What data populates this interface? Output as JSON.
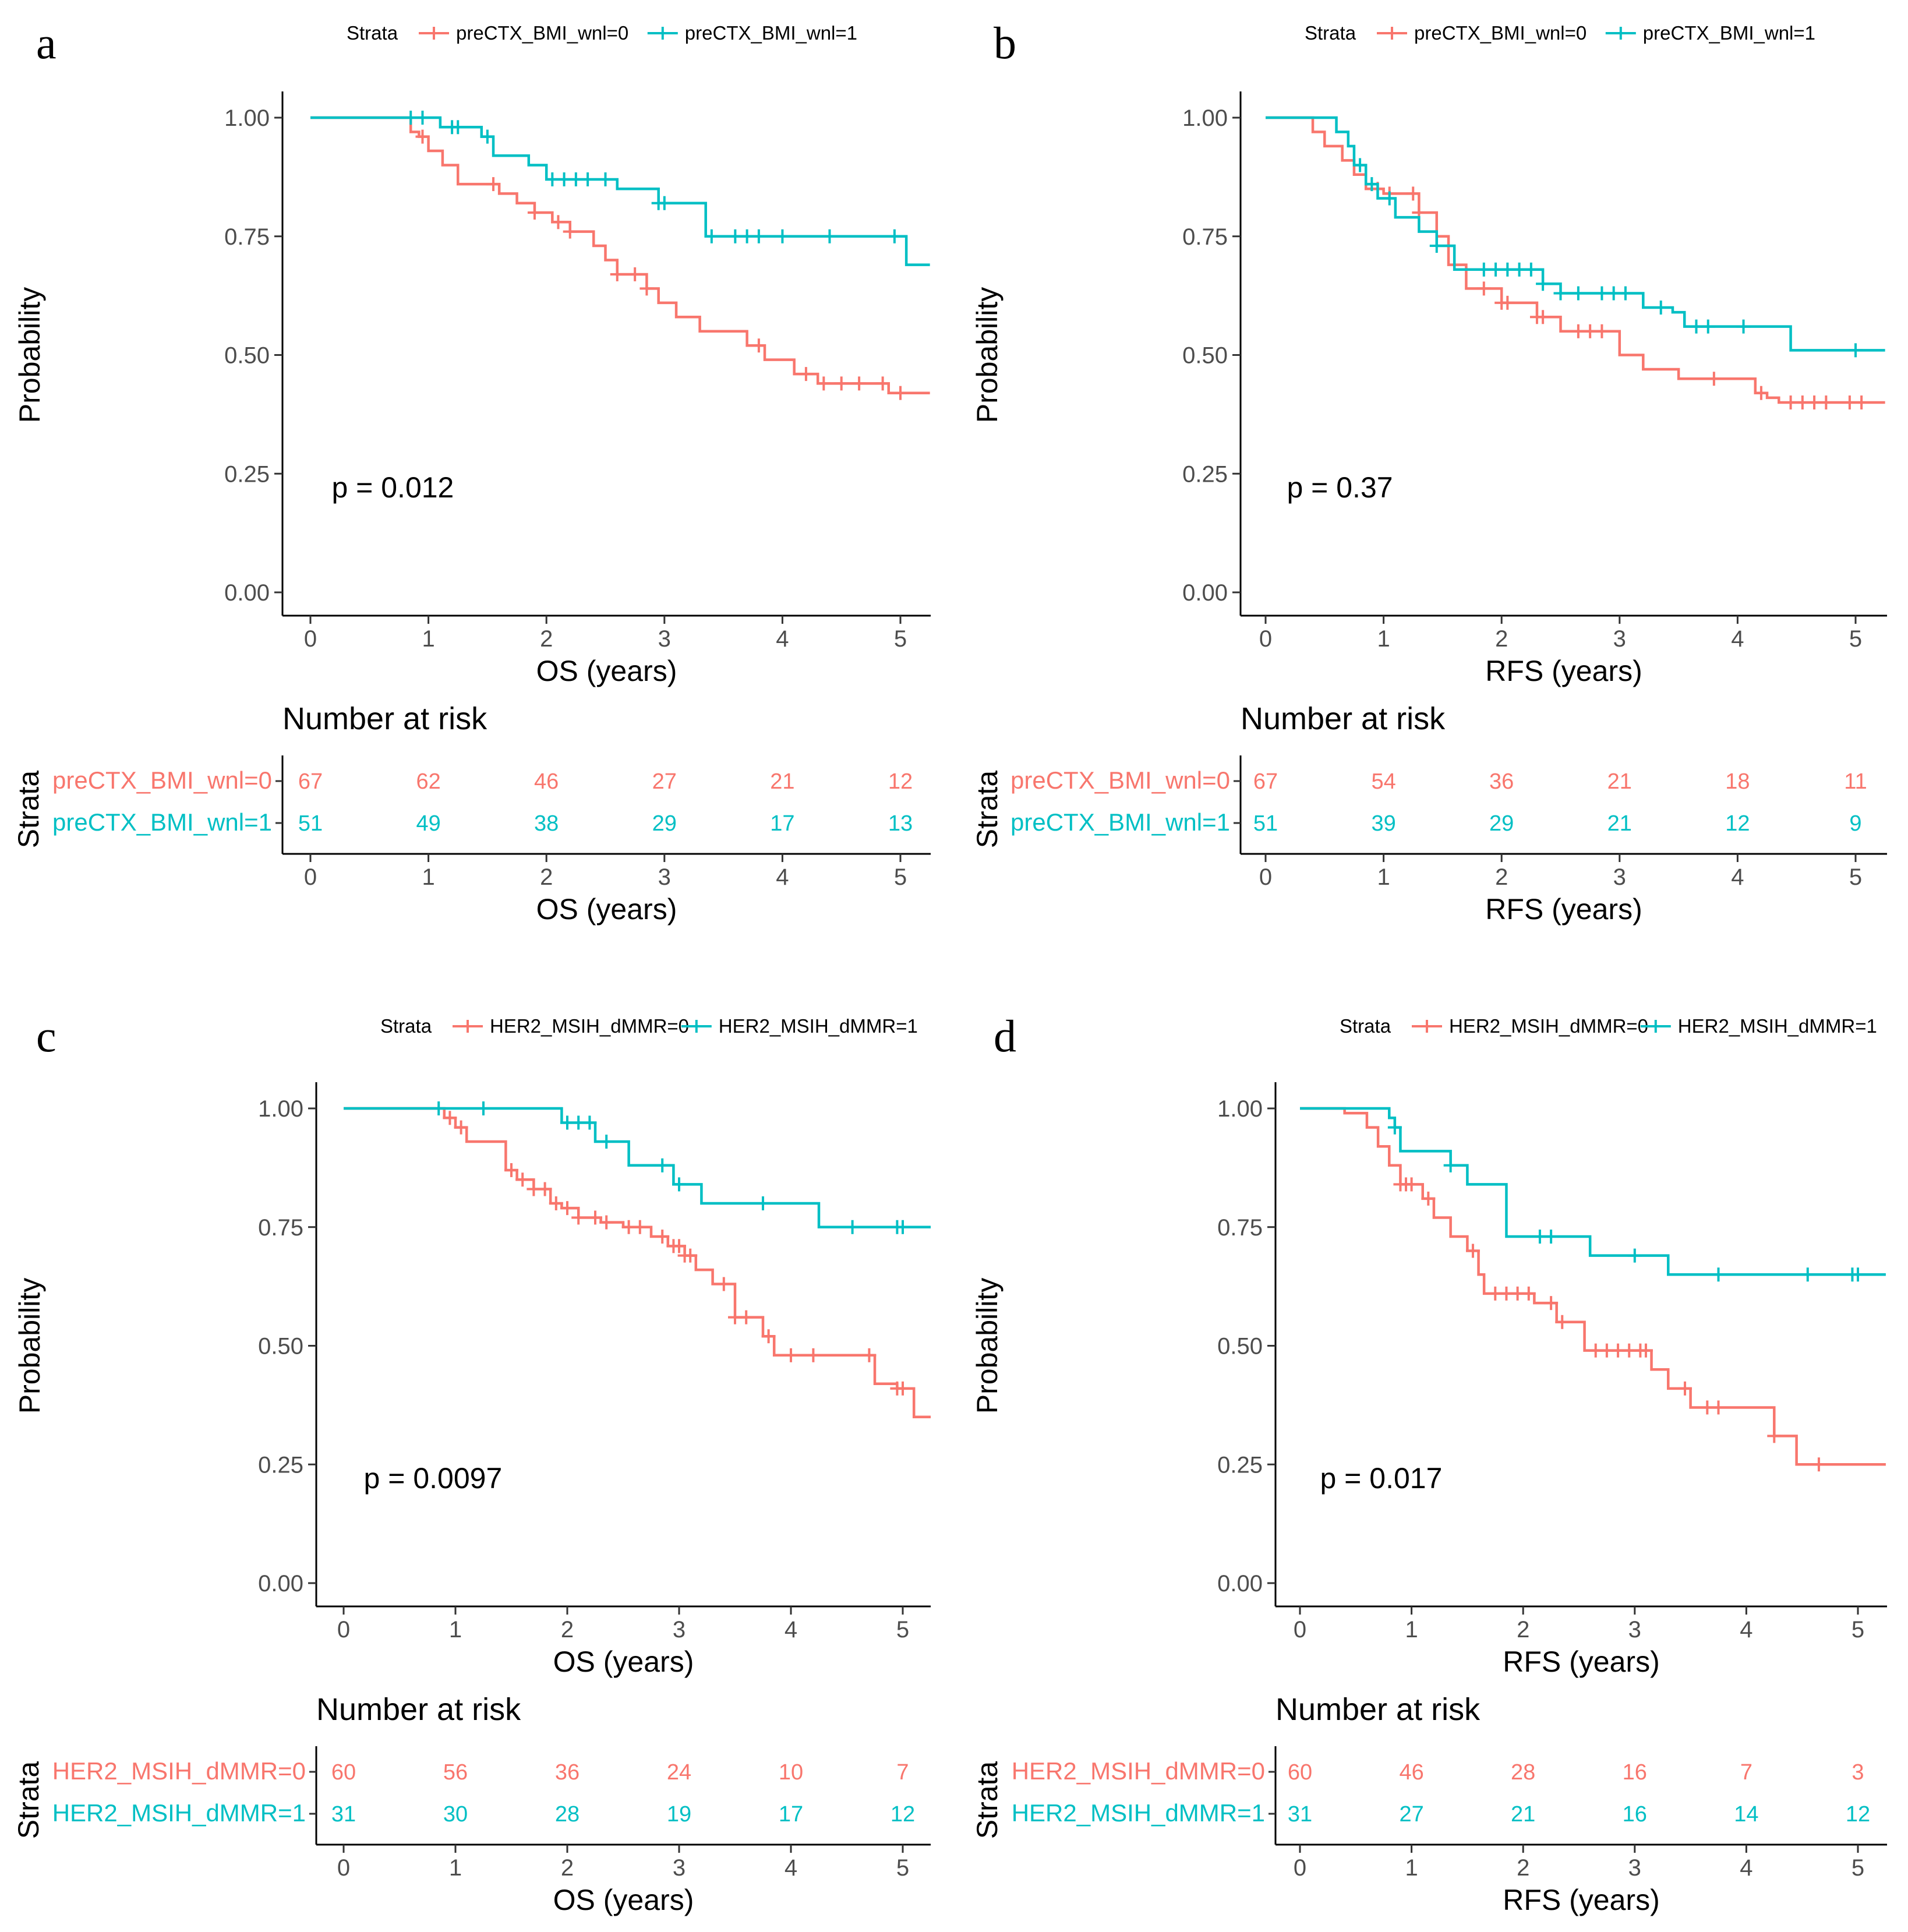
{
  "chart_data": [
    {
      "type": "line",
      "subtype": "kaplan-meier",
      "panel": "a",
      "legend_title": "Strata",
      "xlabel": "OS (years)",
      "ylabel": "Probability",
      "xlim": [
        0,
        5.2
      ],
      "ylim": [
        0,
        1
      ],
      "xticks": [
        "0",
        "1",
        "2",
        "3",
        "4",
        "5"
      ],
      "yticks": [
        "0.00",
        "0.25",
        "0.50",
        "0.75",
        "1.00"
      ],
      "pvalue": "p = 0.012",
      "series": [
        {
          "name": "preCTX_BMI_wnl=0",
          "color": "#F8766D",
          "x": [
            0,
            0.85,
            0.92,
            1.0,
            1.12,
            1.25,
            1.6,
            1.75,
            1.9,
            2.05,
            2.2,
            2.4,
            2.5,
            2.6,
            2.85,
            2.95,
            3.1,
            3.3,
            3.7,
            3.85,
            4.1,
            4.3,
            4.9,
            5.25
          ],
          "values": [
            1.0,
            0.97,
            0.96,
            0.93,
            0.9,
            0.86,
            0.84,
            0.82,
            0.8,
            0.78,
            0.76,
            0.73,
            0.7,
            0.67,
            0.64,
            0.61,
            0.58,
            0.55,
            0.52,
            0.49,
            0.46,
            0.44,
            0.42,
            0.42
          ],
          "censor_x": [
            0.95,
            1.55,
            1.9,
            2.1,
            2.2,
            2.6,
            2.75,
            2.85,
            3.8,
            4.2,
            4.35,
            4.5,
            4.65,
            4.85,
            5.0
          ]
        },
        {
          "name": "preCTX_BMI_wnl=1",
          "color": "#00BFC4",
          "x": [
            0,
            1.1,
            1.45,
            1.55,
            1.85,
            2.0,
            2.6,
            2.95,
            3.35,
            5.05,
            5.25
          ],
          "values": [
            1.0,
            0.98,
            0.96,
            0.92,
            0.9,
            0.87,
            0.85,
            0.82,
            0.75,
            0.69,
            0.69
          ],
          "censor_x": [
            0.85,
            0.95,
            1.2,
            1.25,
            1.5,
            2.05,
            2.15,
            2.25,
            2.35,
            2.5,
            2.95,
            3.0,
            3.4,
            3.6,
            3.7,
            3.8,
            4.0,
            4.4,
            4.95
          ]
        }
      ],
      "risk_table": {
        "title": "Number at risk",
        "ylabel": "Strata",
        "xlabel": "OS (years)",
        "rows": [
          {
            "label": "preCTX_BMI_wnl=0",
            "color": "#F8766D",
            "counts": [
              "67",
              "62",
              "46",
              "27",
              "21",
              "12"
            ]
          },
          {
            "label": "preCTX_BMI_wnl=1",
            "color": "#00BFC4",
            "counts": [
              "51",
              "49",
              "38",
              "29",
              "17",
              "13"
            ]
          }
        ]
      }
    },
    {
      "type": "line",
      "subtype": "kaplan-meier",
      "panel": "b",
      "legend_title": "Strata",
      "xlabel": "RFS (years)",
      "ylabel": "Probability",
      "xlim": [
        0,
        5.2
      ],
      "ylim": [
        0,
        1
      ],
      "xticks": [
        "0",
        "1",
        "2",
        "3",
        "4",
        "5"
      ],
      "yticks": [
        "0.00",
        "0.25",
        "0.50",
        "0.75",
        "1.00"
      ],
      "pvalue": "p = 0.37",
      "series": [
        {
          "name": "preCTX_BMI_wnl=0",
          "color": "#F8766D",
          "x": [
            0,
            0.4,
            0.5,
            0.65,
            0.75,
            0.85,
            1.0,
            1.3,
            1.45,
            1.55,
            1.7,
            2.0,
            2.3,
            2.5,
            3.0,
            3.2,
            3.5,
            4.15,
            4.25,
            4.35,
            5.25
          ],
          "values": [
            1.0,
            0.97,
            0.94,
            0.91,
            0.88,
            0.85,
            0.84,
            0.8,
            0.75,
            0.69,
            0.64,
            0.61,
            0.58,
            0.55,
            0.5,
            0.47,
            0.45,
            0.42,
            0.41,
            0.4,
            0.4
          ],
          "censor_x": [
            0.95,
            1.05,
            1.25,
            1.3,
            1.85,
            2.0,
            2.05,
            2.3,
            2.35,
            2.65,
            2.75,
            2.85,
            3.8,
            4.2,
            4.45,
            4.55,
            4.65,
            4.75,
            4.95,
            5.05
          ]
        },
        {
          "name": "preCTX_BMI_wnl=1",
          "color": "#00BFC4",
          "x": [
            0,
            0.6,
            0.7,
            0.75,
            0.85,
            0.95,
            1.1,
            1.3,
            1.45,
            1.6,
            2.35,
            2.5,
            3.2,
            3.45,
            3.55,
            4.45,
            5.25
          ],
          "values": [
            1.0,
            0.97,
            0.94,
            0.9,
            0.86,
            0.83,
            0.79,
            0.76,
            0.73,
            0.68,
            0.65,
            0.63,
            0.6,
            0.59,
            0.56,
            0.51,
            0.51
          ],
          "censor_x": [
            0.8,
            0.9,
            1.05,
            1.45,
            1.85,
            1.95,
            2.05,
            2.15,
            2.25,
            2.35,
            2.5,
            2.65,
            2.85,
            2.95,
            3.05,
            3.35,
            3.65,
            3.75,
            4.05,
            5.0
          ]
        }
      ],
      "risk_table": {
        "title": "Number at risk",
        "ylabel": "Strata",
        "xlabel": "RFS (years)",
        "rows": [
          {
            "label": "preCTX_BMI_wnl=0",
            "color": "#F8766D",
            "counts": [
              "67",
              "54",
              "36",
              "21",
              "18",
              "11"
            ]
          },
          {
            "label": "preCTX_BMI_wnl=1",
            "color": "#00BFC4",
            "counts": [
              "51",
              "39",
              "29",
              "21",
              "12",
              "9"
            ]
          }
        ]
      }
    },
    {
      "type": "line",
      "subtype": "kaplan-meier",
      "panel": "c",
      "legend_title": "Strata",
      "xlabel": "OS (years)",
      "ylabel": "Probability",
      "xlim": [
        0,
        5.2
      ],
      "ylim": [
        0,
        1
      ],
      "xticks": [
        "0",
        "1",
        "2",
        "3",
        "4",
        "5"
      ],
      "yticks": [
        "0.00",
        "0.25",
        "0.50",
        "0.75",
        "1.00"
      ],
      "pvalue": "p = 0.0097",
      "series": [
        {
          "name": "HER2_MSIH_dMMR=0",
          "color": "#F8766D",
          "x": [
            0,
            0.9,
            1.0,
            1.1,
            1.45,
            1.55,
            1.7,
            1.85,
            1.95,
            2.1,
            2.3,
            2.5,
            2.75,
            2.9,
            3.05,
            3.15,
            3.3,
            3.5,
            3.75,
            3.85,
            4.75,
            4.95,
            5.1,
            5.25
          ],
          "values": [
            1.0,
            0.98,
            0.96,
            0.93,
            0.87,
            0.85,
            0.83,
            0.8,
            0.79,
            0.77,
            0.76,
            0.75,
            0.73,
            0.71,
            0.69,
            0.66,
            0.63,
            0.56,
            0.52,
            0.48,
            0.42,
            0.41,
            0.35,
            0.35
          ],
          "censor_x": [
            0.95,
            1.05,
            1.5,
            1.6,
            1.7,
            1.8,
            1.9,
            2.0,
            2.1,
            2.25,
            2.35,
            2.55,
            2.65,
            2.85,
            2.95,
            3.0,
            3.05,
            3.1,
            3.4,
            3.5,
            3.6,
            3.8,
            4.0,
            4.2,
            4.7,
            4.95,
            5.0
          ]
        },
        {
          "name": "HER2_MSIH_dMMR=1",
          "color": "#00BFC4",
          "x": [
            0,
            1.95,
            2.25,
            2.55,
            2.95,
            3.2,
            4.25,
            5.25
          ],
          "values": [
            1.0,
            0.97,
            0.93,
            0.88,
            0.84,
            0.8,
            0.75,
            0.75
          ],
          "censor_x": [
            0.85,
            1.25,
            2.0,
            2.1,
            2.2,
            2.35,
            2.85,
            3.0,
            3.75,
            4.55,
            4.95,
            5.0
          ]
        }
      ],
      "risk_table": {
        "title": "Number at risk",
        "ylabel": "Strata",
        "xlabel": "OS (years)",
        "rows": [
          {
            "label": "HER2_MSIH_dMMR=0",
            "color": "#F8766D",
            "counts": [
              "60",
              "56",
              "36",
              "24",
              "10",
              "7"
            ]
          },
          {
            "label": "HER2_MSIH_dMMR=1",
            "color": "#00BFC4",
            "counts": [
              "31",
              "30",
              "28",
              "19",
              "17",
              "12"
            ]
          }
        ]
      }
    },
    {
      "type": "line",
      "subtype": "kaplan-meier",
      "panel": "d",
      "legend_title": "Strata",
      "xlabel": "RFS (years)",
      "ylabel": "Probability",
      "xlim": [
        0,
        5.2
      ],
      "ylim": [
        0,
        1
      ],
      "xticks": [
        "0",
        "1",
        "2",
        "3",
        "4",
        "5"
      ],
      "yticks": [
        "0.00",
        "0.25",
        "0.50",
        "0.75",
        "1.00"
      ],
      "pvalue": "p = 0.017",
      "series": [
        {
          "name": "HER2_MSIH_dMMR=0",
          "color": "#F8766D",
          "x": [
            0,
            0.4,
            0.6,
            0.7,
            0.8,
            0.9,
            1.1,
            1.2,
            1.35,
            1.5,
            1.6,
            1.65,
            2.1,
            2.3,
            2.55,
            3.15,
            3.3,
            3.5,
            4.25,
            4.45,
            5.25
          ],
          "values": [
            1.0,
            0.99,
            0.96,
            0.92,
            0.88,
            0.84,
            0.81,
            0.77,
            0.73,
            0.7,
            0.65,
            0.61,
            0.59,
            0.55,
            0.49,
            0.45,
            0.41,
            0.37,
            0.31,
            0.25,
            0.25
          ],
          "censor_x": [
            0.9,
            0.95,
            1.0,
            1.15,
            1.55,
            1.75,
            1.85,
            1.95,
            2.05,
            2.25,
            2.35,
            2.65,
            2.75,
            2.85,
            2.95,
            3.05,
            3.1,
            3.45,
            3.65,
            3.75,
            4.25,
            4.65
          ]
        },
        {
          "name": "HER2_MSIH_dMMR=1",
          "color": "#00BFC4",
          "x": [
            0,
            0.8,
            0.85,
            0.9,
            1.35,
            1.5,
            1.85,
            2.6,
            3.3,
            5.25
          ],
          "values": [
            1.0,
            0.98,
            0.96,
            0.91,
            0.88,
            0.84,
            0.73,
            0.69,
            0.65,
            0.65
          ],
          "censor_x": [
            0.85,
            1.35,
            2.15,
            2.25,
            3.0,
            3.75,
            4.55,
            4.95,
            5.0
          ]
        }
      ],
      "risk_table": {
        "title": "Number at risk",
        "ylabel": "Strata",
        "xlabel": "RFS (years)",
        "rows": [
          {
            "label": "HER2_MSIH_dMMR=0",
            "color": "#F8766D",
            "counts": [
              "60",
              "46",
              "28",
              "16",
              "7",
              "3"
            ]
          },
          {
            "label": "HER2_MSIH_dMMR=1",
            "color": "#00BFC4",
            "counts": [
              "31",
              "27",
              "21",
              "16",
              "14",
              "12"
            ]
          }
        ]
      }
    }
  ]
}
